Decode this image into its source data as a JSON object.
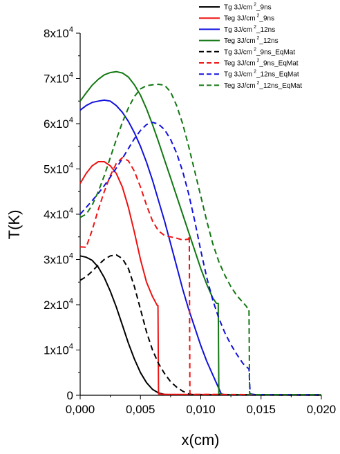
{
  "chart_data": {
    "type": "line",
    "xlabel": "x(cm)",
    "ylabel": "T(K)",
    "xlim": [
      0,
      0.02
    ],
    "ylim": [
      0,
      80000
    ],
    "x_ticks": [
      {
        "value": 0.0,
        "label": "0,000"
      },
      {
        "value": 0.005,
        "label": "0,005"
      },
      {
        "value": 0.01,
        "label": "0,010"
      },
      {
        "value": 0.015,
        "label": "0,015"
      },
      {
        "value": 0.02,
        "label": "0,020"
      }
    ],
    "y_ticks": [
      {
        "value": 0,
        "label": "0"
      },
      {
        "value": 10000,
        "mantissa": "1x10",
        "exponent": "4"
      },
      {
        "value": 20000,
        "mantissa": "2x10",
        "exponent": "4"
      },
      {
        "value": 30000,
        "mantissa": "3x10",
        "exponent": "4"
      },
      {
        "value": 40000,
        "mantissa": "4x10",
        "exponent": "4"
      },
      {
        "value": 50000,
        "mantissa": "5x10",
        "exponent": "4"
      },
      {
        "value": 60000,
        "mantissa": "6x10",
        "exponent": "4"
      },
      {
        "value": 70000,
        "mantissa": "7x10",
        "exponent": "4"
      },
      {
        "value": 80000,
        "mantissa": "8x10",
        "exponent": "4"
      }
    ],
    "legend_position": "top-right",
    "series": [
      {
        "name_parts": [
          "Tg 3J/cm",
          "2",
          "_9ns"
        ],
        "color": "#000000",
        "dash": "solid",
        "points": [
          [
            0,
            30800
          ],
          [
            0.0005,
            30500
          ],
          [
            0.001,
            29800
          ],
          [
            0.0015,
            28300
          ],
          [
            0.002,
            26000
          ],
          [
            0.0025,
            23000
          ],
          [
            0.003,
            19500
          ],
          [
            0.0035,
            15500
          ],
          [
            0.004,
            11500
          ],
          [
            0.0045,
            8000
          ],
          [
            0.005,
            5000
          ],
          [
            0.0055,
            2800
          ],
          [
            0.006,
            1300
          ],
          [
            0.0065,
            500
          ],
          [
            0.007,
            200
          ],
          [
            0.008,
            80
          ],
          [
            0.02,
            50
          ]
        ]
      },
      {
        "name_parts": [
          "Teg 3J/cm",
          "2",
          "_9ns"
        ],
        "color": "#ee1111",
        "dash": "solid",
        "points": [
          [
            0,
            46800
          ],
          [
            0.0005,
            49000
          ],
          [
            0.001,
            50700
          ],
          [
            0.0015,
            51600
          ],
          [
            0.002,
            51600
          ],
          [
            0.0025,
            50700
          ],
          [
            0.003,
            49000
          ],
          [
            0.0035,
            46000
          ],
          [
            0.004,
            41500
          ],
          [
            0.0045,
            36000
          ],
          [
            0.005,
            30000
          ],
          [
            0.0055,
            25000
          ],
          [
            0.006,
            21800
          ],
          [
            0.0064,
            19800
          ],
          [
            0.00645,
            19800
          ],
          [
            0.0065,
            300
          ],
          [
            0.007,
            200
          ],
          [
            0.02,
            100
          ]
        ]
      },
      {
        "name_parts": [
          "Tg 3J/cm",
          "2",
          "_12ns"
        ],
        "color": "#1111dd",
        "dash": "solid",
        "points": [
          [
            0,
            63000
          ],
          [
            0.0005,
            64000
          ],
          [
            0.001,
            64700
          ],
          [
            0.0015,
            65000
          ],
          [
            0.002,
            65200
          ],
          [
            0.0025,
            65000
          ],
          [
            0.003,
            64000
          ],
          [
            0.0035,
            62500
          ],
          [
            0.004,
            60500
          ],
          [
            0.0045,
            58000
          ],
          [
            0.005,
            55000
          ],
          [
            0.0055,
            51500
          ],
          [
            0.006,
            47500
          ],
          [
            0.0065,
            43000
          ],
          [
            0.007,
            38500
          ],
          [
            0.0075,
            33500
          ],
          [
            0.008,
            28500
          ],
          [
            0.0085,
            23500
          ],
          [
            0.009,
            19000
          ],
          [
            0.0095,
            15000
          ],
          [
            0.01,
            11000
          ],
          [
            0.0105,
            7500
          ],
          [
            0.011,
            4500
          ],
          [
            0.0115,
            1500
          ],
          [
            0.0117,
            300
          ],
          [
            0.012,
            100
          ],
          [
            0.02,
            100
          ]
        ]
      },
      {
        "name_parts": [
          "Teg 3J/cm",
          "2",
          "_12ns"
        ],
        "color": "#117711",
        "dash": "solid",
        "points": [
          [
            0,
            65000
          ],
          [
            0.0005,
            66800
          ],
          [
            0.001,
            68500
          ],
          [
            0.0015,
            69800
          ],
          [
            0.002,
            70800
          ],
          [
            0.0025,
            71300
          ],
          [
            0.003,
            71500
          ],
          [
            0.0035,
            71200
          ],
          [
            0.004,
            70300
          ],
          [
            0.0045,
            68600
          ],
          [
            0.005,
            66300
          ],
          [
            0.0055,
            63300
          ],
          [
            0.006,
            59800
          ],
          [
            0.0065,
            56000
          ],
          [
            0.007,
            52000
          ],
          [
            0.0075,
            48000
          ],
          [
            0.008,
            44000
          ],
          [
            0.0085,
            40000
          ],
          [
            0.009,
            36000
          ],
          [
            0.0095,
            32000
          ],
          [
            0.01,
            28000
          ],
          [
            0.0105,
            24500
          ],
          [
            0.011,
            21500
          ],
          [
            0.0113,
            20300
          ],
          [
            0.01145,
            20300
          ],
          [
            0.0115,
            300
          ],
          [
            0.012,
            150
          ],
          [
            0.02,
            100
          ]
        ]
      },
      {
        "name_parts": [
          "Tg 3J/cm",
          "2",
          "_9ns_EqMat"
        ],
        "color": "#000000",
        "dash": "dashed",
        "points": [
          [
            0,
            25400
          ],
          [
            0.0005,
            26200
          ],
          [
            0.001,
            27400
          ],
          [
            0.0015,
            28800
          ],
          [
            0.002,
            30000
          ],
          [
            0.0025,
            30800
          ],
          [
            0.003,
            31000
          ],
          [
            0.0035,
            30200
          ],
          [
            0.004,
            28000
          ],
          [
            0.0045,
            24000
          ],
          [
            0.005,
            19000
          ],
          [
            0.0055,
            14000
          ],
          [
            0.006,
            10000
          ],
          [
            0.0065,
            7000
          ],
          [
            0.007,
            4800
          ],
          [
            0.0075,
            3000
          ],
          [
            0.008,
            1800
          ],
          [
            0.0085,
            900
          ],
          [
            0.009,
            300
          ],
          [
            0.0092,
            100
          ],
          [
            0.02,
            50
          ]
        ]
      },
      {
        "name_parts": [
          "Teg 3J/cm",
          "2",
          "_9ns_EqMat"
        ],
        "color": "#ee1111",
        "dash": "dashed",
        "points": [
          [
            0,
            32800
          ],
          [
            0.0005,
            32700
          ],
          [
            0.001,
            36500
          ],
          [
            0.0015,
            41000
          ],
          [
            0.002,
            45000
          ],
          [
            0.0025,
            48500
          ],
          [
            0.003,
            51200
          ],
          [
            0.0035,
            52500
          ],
          [
            0.004,
            51800
          ],
          [
            0.0045,
            49500
          ],
          [
            0.005,
            46000
          ],
          [
            0.0055,
            42000
          ],
          [
            0.006,
            38500
          ],
          [
            0.0065,
            36300
          ],
          [
            0.007,
            35300
          ],
          [
            0.0075,
            35000
          ],
          [
            0.008,
            34700
          ],
          [
            0.0085,
            34300
          ],
          [
            0.009,
            34500
          ],
          [
            0.00905,
            35300
          ],
          [
            0.0091,
            300
          ],
          [
            0.0095,
            200
          ],
          [
            0.02,
            100
          ]
        ]
      },
      {
        "name_parts": [
          "Tg 3J/cm",
          "2",
          "_12ns_EqMat"
        ],
        "color": "#1111dd",
        "dash": "dashed",
        "points": [
          [
            0,
            40000
          ],
          [
            0.0005,
            41500
          ],
          [
            0.001,
            43000
          ],
          [
            0.0015,
            44600
          ],
          [
            0.002,
            46300
          ],
          [
            0.0025,
            48200
          ],
          [
            0.003,
            50200
          ],
          [
            0.0035,
            52300
          ],
          [
            0.004,
            54500
          ],
          [
            0.0045,
            56700
          ],
          [
            0.005,
            58500
          ],
          [
            0.0055,
            59800
          ],
          [
            0.006,
            60300
          ],
          [
            0.0065,
            59900
          ],
          [
            0.007,
            58700
          ],
          [
            0.0075,
            56500
          ],
          [
            0.008,
            53500
          ],
          [
            0.0085,
            49500
          ],
          [
            0.009,
            44500
          ],
          [
            0.0095,
            38500
          ],
          [
            0.01,
            32000
          ],
          [
            0.0105,
            26000
          ],
          [
            0.011,
            21000
          ],
          [
            0.0115,
            17000
          ],
          [
            0.012,
            13800
          ],
          [
            0.0125,
            11200
          ],
          [
            0.013,
            9000
          ],
          [
            0.0135,
            7000
          ],
          [
            0.014,
            5800
          ],
          [
            0.0141,
            300
          ],
          [
            0.0145,
            150
          ],
          [
            0.02,
            100
          ]
        ]
      },
      {
        "name_parts": [
          "Teg 3J/cm",
          "2",
          "_12ns_EqMat"
        ],
        "color": "#117711",
        "dash": "dashed",
        "points": [
          [
            0,
            39300
          ],
          [
            0.0005,
            40000
          ],
          [
            0.001,
            42000
          ],
          [
            0.0015,
            45000
          ],
          [
            0.002,
            48500
          ],
          [
            0.0025,
            52500
          ],
          [
            0.003,
            56500
          ],
          [
            0.0035,
            60300
          ],
          [
            0.004,
            63500
          ],
          [
            0.0045,
            66000
          ],
          [
            0.005,
            67700
          ],
          [
            0.0055,
            68400
          ],
          [
            0.006,
            68600
          ],
          [
            0.0065,
            68700
          ],
          [
            0.007,
            68500
          ],
          [
            0.0075,
            67000
          ],
          [
            0.008,
            64000
          ],
          [
            0.0085,
            60000
          ],
          [
            0.009,
            55000
          ],
          [
            0.0095,
            49500
          ],
          [
            0.01,
            44000
          ],
          [
            0.0105,
            38500
          ],
          [
            0.011,
            33500
          ],
          [
            0.0115,
            29500
          ],
          [
            0.012,
            26500
          ],
          [
            0.0125,
            24000
          ],
          [
            0.013,
            22000
          ],
          [
            0.0135,
            20500
          ],
          [
            0.0138,
            19600
          ],
          [
            0.0139,
            19000
          ],
          [
            0.014,
            19000
          ],
          [
            0.01405,
            300
          ],
          [
            0.0145,
            150
          ],
          [
            0.02,
            100
          ]
        ]
      }
    ]
  }
}
